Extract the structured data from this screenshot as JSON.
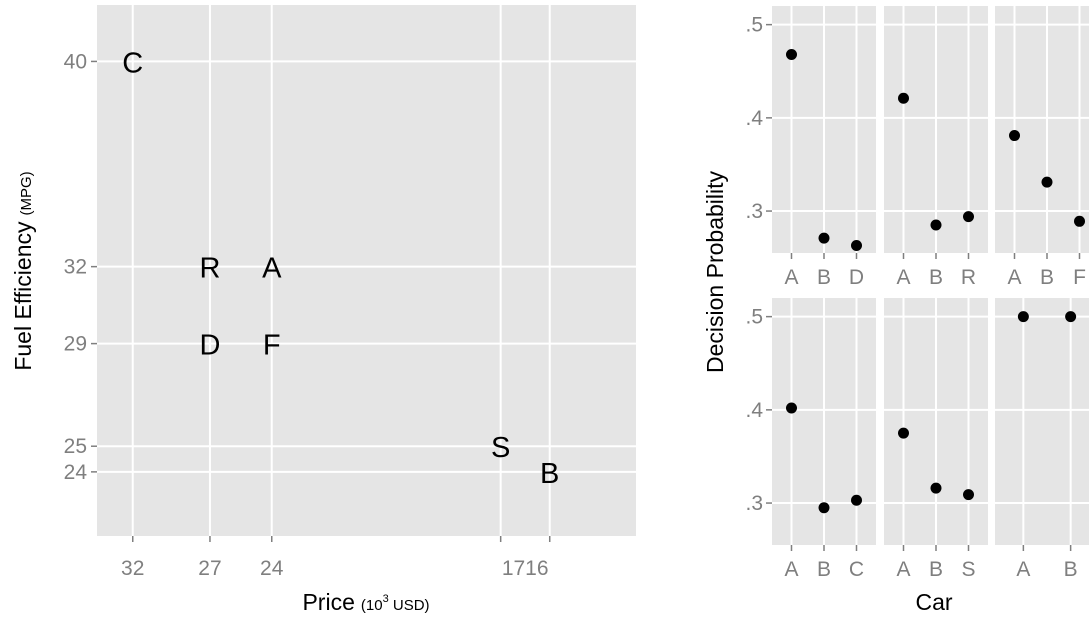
{
  "chart_data": [
    {
      "type": "scatter",
      "xlabel": "Price",
      "xlabel_unit_base": "(10",
      "xlabel_unit_exp": "3",
      "xlabel_unit_rest": " USD)",
      "ylabel": "Fuel Efficiency",
      "ylabel_unit": "(MPG)",
      "x_scale": "reciprocal",
      "x_ticks": [
        "32",
        "27",
        "24",
        "1716"
      ],
      "y_ticks": [
        "40",
        "32",
        "29",
        "25",
        "24"
      ],
      "y_tick_values": [
        40,
        32,
        29,
        25,
        24
      ],
      "xlim": [
        35,
        14.5
      ],
      "ylim": [
        21.5,
        42.2
      ],
      "points": [
        {
          "label": "C",
          "price": 32,
          "mpg": 40
        },
        {
          "label": "R",
          "price": 27,
          "mpg": 32
        },
        {
          "label": "A",
          "price": 24,
          "mpg": 32
        },
        {
          "label": "D",
          "price": 27,
          "mpg": 29
        },
        {
          "label": "F",
          "price": 24,
          "mpg": 29
        },
        {
          "label": "S",
          "price": 17,
          "mpg": 25
        },
        {
          "label": "B",
          "price": 16,
          "mpg": 24
        }
      ]
    },
    {
      "type": "scatter",
      "xlabel": "Car",
      "ylabel": "Decision Probability",
      "y_ticks": [
        ".5",
        ".4",
        ".3"
      ],
      "y_tick_values": [
        0.5,
        0.4,
        0.3
      ],
      "ylim": [
        0.255,
        0.52
      ],
      "panels": [
        {
          "categories": [
            "A",
            "B",
            "D"
          ],
          "values": [
            0.468,
            0.271,
            0.263
          ]
        },
        {
          "categories": [
            "A",
            "B",
            "R"
          ],
          "values": [
            0.421,
            0.285,
            0.294
          ]
        },
        {
          "categories": [
            "A",
            "B",
            "F"
          ],
          "values": [
            0.381,
            0.331,
            0.289
          ]
        },
        {
          "categories": [
            "A",
            "B",
            "C"
          ],
          "values": [
            0.402,
            0.295,
            0.303
          ]
        },
        {
          "categories": [
            "A",
            "B",
            "S"
          ],
          "values": [
            0.375,
            0.316,
            0.309
          ]
        },
        {
          "categories": [
            "A",
            "B"
          ],
          "values": [
            0.5,
            0.5
          ]
        }
      ]
    }
  ]
}
